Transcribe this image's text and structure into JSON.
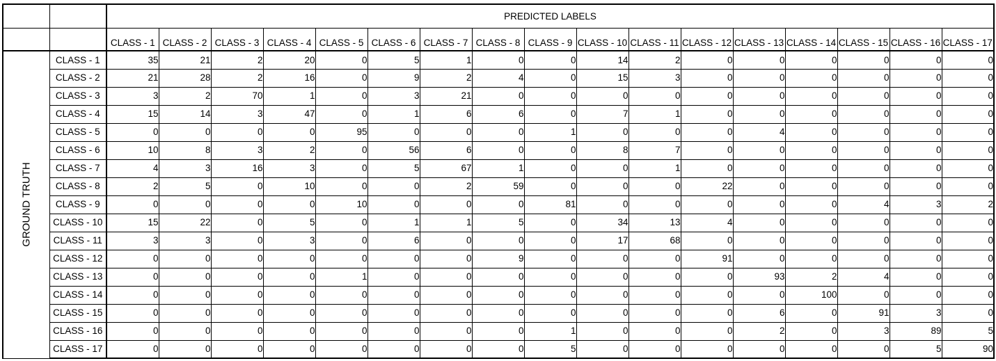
{
  "chart_data": {
    "type": "table",
    "title": "",
    "column_group_label": "PREDICTED LABELS",
    "row_group_label": "GROUND TRUTH",
    "columns": [
      "CLASS - 1",
      "CLASS - 2",
      "CLASS - 3",
      "CLASS - 4",
      "CLASS - 5",
      "CLASS - 6",
      "CLASS - 7",
      "CLASS - 8",
      "CLASS - 9",
      "CLASS - 10",
      "CLASS - 11",
      "CLASS - 12",
      "CLASS - 13",
      "CLASS - 14",
      "CLASS - 15",
      "CLASS - 16",
      "CLASS - 17"
    ],
    "rows": [
      "CLASS - 1",
      "CLASS - 2",
      "CLASS - 3",
      "CLASS - 4",
      "CLASS - 5",
      "CLASS - 6",
      "CLASS - 7",
      "CLASS - 8",
      "CLASS - 9",
      "CLASS - 10",
      "CLASS - 11",
      "CLASS - 12",
      "CLASS - 13",
      "CLASS - 14",
      "CLASS - 15",
      "CLASS - 16",
      "CLASS - 17"
    ],
    "values": [
      [
        35,
        21,
        2,
        20,
        0,
        5,
        1,
        0,
        0,
        14,
        2,
        0,
        0,
        0,
        0,
        0,
        0
      ],
      [
        21,
        28,
        2,
        16,
        0,
        9,
        2,
        4,
        0,
        15,
        3,
        0,
        0,
        0,
        0,
        0,
        0
      ],
      [
        3,
        2,
        70,
        1,
        0,
        3,
        21,
        0,
        0,
        0,
        0,
        0,
        0,
        0,
        0,
        0,
        0
      ],
      [
        15,
        14,
        3,
        47,
        0,
        1,
        6,
        6,
        0,
        7,
        1,
        0,
        0,
        0,
        0,
        0,
        0
      ],
      [
        0,
        0,
        0,
        0,
        95,
        0,
        0,
        0,
        1,
        0,
        0,
        0,
        4,
        0,
        0,
        0,
        0
      ],
      [
        10,
        8,
        3,
        2,
        0,
        56,
        6,
        0,
        0,
        8,
        7,
        0,
        0,
        0,
        0,
        0,
        0
      ],
      [
        4,
        3,
        16,
        3,
        0,
        5,
        67,
        1,
        0,
        0,
        1,
        0,
        0,
        0,
        0,
        0,
        0
      ],
      [
        2,
        5,
        0,
        10,
        0,
        0,
        2,
        59,
        0,
        0,
        0,
        22,
        0,
        0,
        0,
        0,
        0
      ],
      [
        0,
        0,
        0,
        0,
        10,
        0,
        0,
        0,
        81,
        0,
        0,
        0,
        0,
        0,
        4,
        3,
        2
      ],
      [
        15,
        22,
        0,
        5,
        0,
        1,
        1,
        5,
        0,
        34,
        13,
        4,
        0,
        0,
        0,
        0,
        0
      ],
      [
        3,
        3,
        0,
        3,
        0,
        6,
        0,
        0,
        0,
        17,
        68,
        0,
        0,
        0,
        0,
        0,
        0
      ],
      [
        0,
        0,
        0,
        0,
        0,
        0,
        0,
        9,
        0,
        0,
        0,
        91,
        0,
        0,
        0,
        0,
        0
      ],
      [
        0,
        0,
        0,
        0,
        1,
        0,
        0,
        0,
        0,
        0,
        0,
        0,
        93,
        2,
        4,
        0,
        0
      ],
      [
        0,
        0,
        0,
        0,
        0,
        0,
        0,
        0,
        0,
        0,
        0,
        0,
        0,
        100,
        0,
        0,
        0
      ],
      [
        0,
        0,
        0,
        0,
        0,
        0,
        0,
        0,
        0,
        0,
        0,
        0,
        6,
        0,
        91,
        3,
        0
      ],
      [
        0,
        0,
        0,
        0,
        0,
        0,
        0,
        0,
        1,
        0,
        0,
        0,
        2,
        0,
        3,
        89,
        5
      ],
      [
        0,
        0,
        0,
        0,
        0,
        0,
        0,
        0,
        5,
        0,
        0,
        0,
        0,
        0,
        0,
        5,
        90
      ]
    ]
  }
}
